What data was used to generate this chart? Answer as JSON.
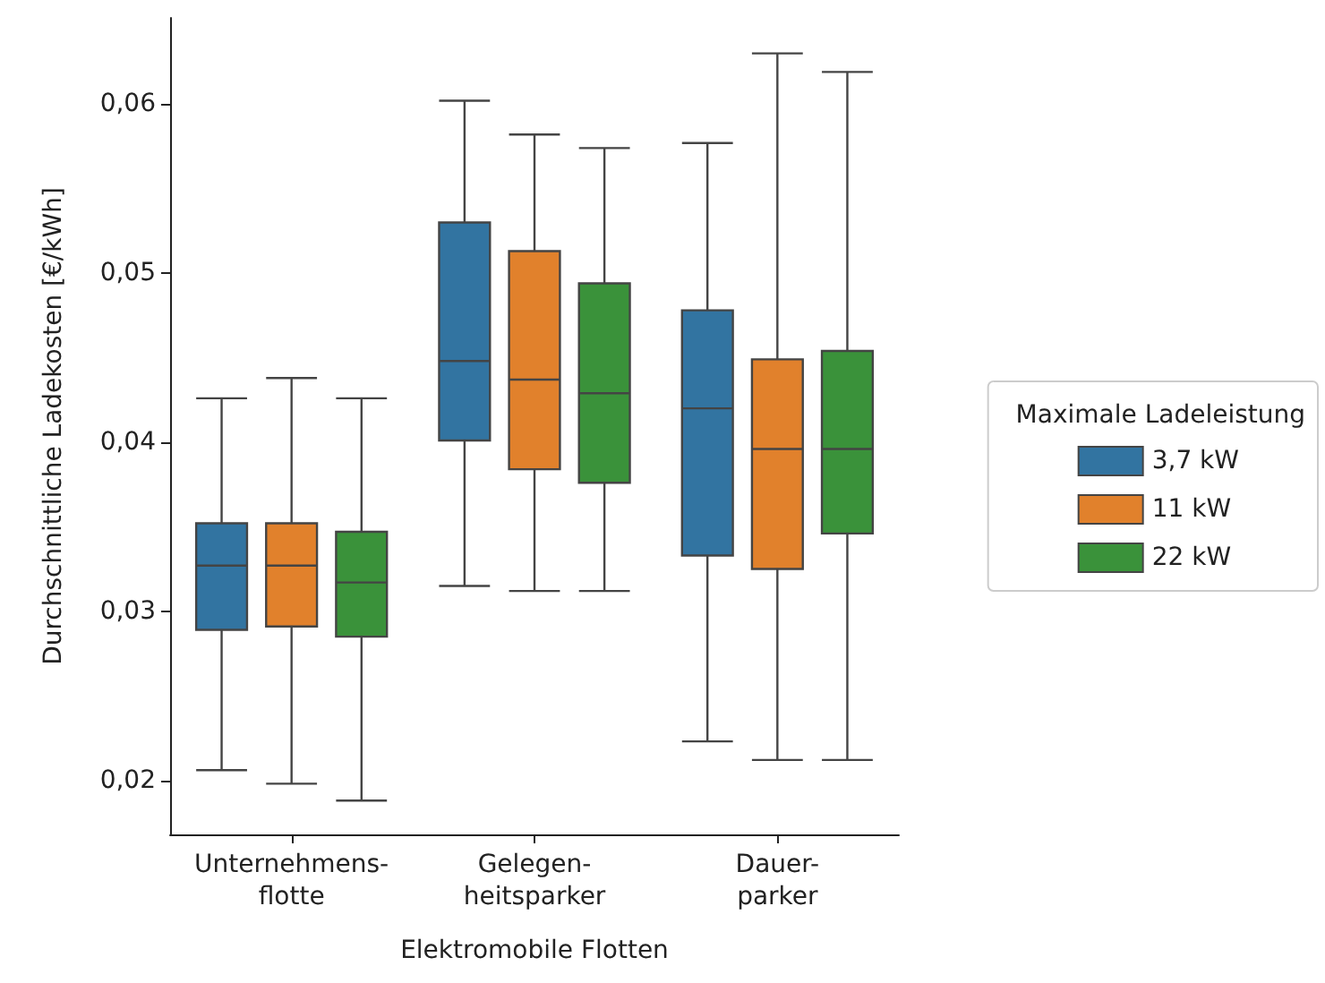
{
  "chart_data": {
    "type": "box",
    "xlabel": "Elektromobile Flotten",
    "ylabel": "Durchschnittliche Ladekosten [€/kWh]",
    "legend_title": "Maximale Ladeleistung",
    "legend": "right",
    "grid": false,
    "categories": [
      "Unternehmens-\nflotte",
      "Gelegen-\nheitsparker",
      "Dauer-\nparker"
    ],
    "ylim": [
      0.0168,
      0.0651
    ],
    "yticks": [
      {
        "value": 0.02,
        "label": "0,02"
      },
      {
        "value": 0.03,
        "label": "0,03"
      },
      {
        "value": 0.04,
        "label": "0,04"
      },
      {
        "value": 0.05,
        "label": "0,05"
      },
      {
        "value": 0.06,
        "label": "0,06"
      }
    ],
    "series": [
      {
        "name": "3,7 kW",
        "color": "#3274a1",
        "boxes": [
          {
            "low": 0.0206,
            "q1": 0.0289,
            "median": 0.0327,
            "q3": 0.0352,
            "high": 0.0426
          },
          {
            "low": 0.0315,
            "q1": 0.0401,
            "median": 0.0448,
            "q3": 0.053,
            "high": 0.0602
          },
          {
            "low": 0.0223,
            "q1": 0.0333,
            "median": 0.042,
            "q3": 0.0478,
            "high": 0.0577
          }
        ]
      },
      {
        "name": "11 kW",
        "color": "#e1812c",
        "boxes": [
          {
            "low": 0.0198,
            "q1": 0.0291,
            "median": 0.0327,
            "q3": 0.0352,
            "high": 0.0438
          },
          {
            "low": 0.0312,
            "q1": 0.0384,
            "median": 0.0437,
            "q3": 0.0513,
            "high": 0.0582
          },
          {
            "low": 0.0212,
            "q1": 0.0325,
            "median": 0.0396,
            "q3": 0.0449,
            "high": 0.063
          }
        ]
      },
      {
        "name": "22 kW",
        "color": "#3a923a",
        "boxes": [
          {
            "low": 0.0188,
            "q1": 0.0285,
            "median": 0.0317,
            "q3": 0.0347,
            "high": 0.0426
          },
          {
            "low": 0.0312,
            "q1": 0.0376,
            "median": 0.0429,
            "q3": 0.0494,
            "high": 0.0574
          },
          {
            "low": 0.0212,
            "q1": 0.0346,
            "median": 0.0396,
            "q3": 0.0454,
            "high": 0.0619
          }
        ]
      }
    ]
  }
}
